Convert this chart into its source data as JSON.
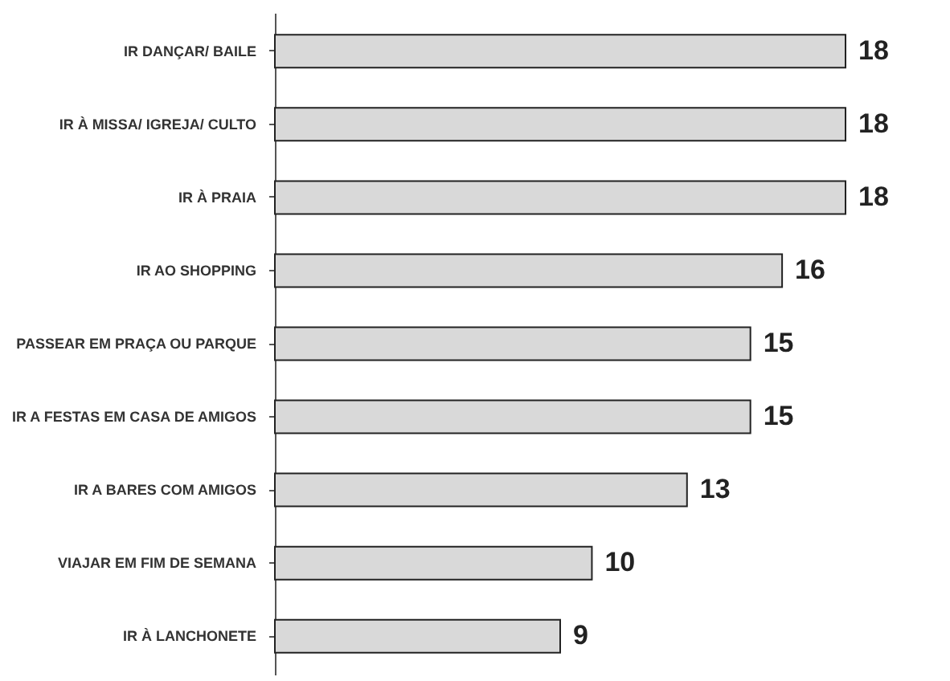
{
  "chart_data": {
    "type": "bar",
    "orientation": "horizontal",
    "categories": [
      "IR DANÇAR/ BAILE",
      "IR À MISSA/ IGREJA/ CULTO",
      "IR À PRAIA",
      "IR AO SHOPPING",
      "PASSEAR EM PRAÇA OU PARQUE",
      "IR A FESTAS EM CASA DE AMIGOS",
      "IR A BARES COM AMIGOS",
      "VIAJAR EM FIM DE SEMANA",
      "IR À LANCHONETE"
    ],
    "values": [
      18,
      18,
      18,
      16,
      15,
      15,
      13,
      10,
      9
    ],
    "color": "#d9d9d9",
    "data_labels": true
  }
}
